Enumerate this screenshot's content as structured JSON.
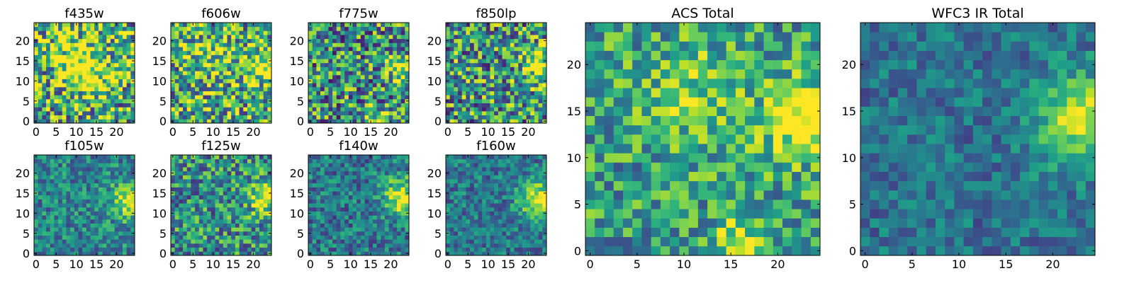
{
  "figure": {
    "colormap": "viridis",
    "colormap_colors": [
      "#440154",
      "#482878",
      "#3e4989",
      "#31688e",
      "#26828e",
      "#1f9e89",
      "#35b779",
      "#6ece58",
      "#b5de2b",
      "#fde725"
    ]
  },
  "chart_data": [
    {
      "type": "heatmap",
      "title": "f435w",
      "grid": false,
      "seed": 11,
      "xlim": [
        0,
        24
      ],
      "ylim": [
        0,
        24
      ],
      "xticks": [
        "0",
        "5",
        "10",
        "15",
        "20"
      ],
      "yticks": [
        "0",
        "5",
        "10",
        "15",
        "20"
      ],
      "description": "25x25 noisy pixel stamp",
      "values": [],
      "bright_spots": [
        [
          10,
          15,
          0.35,
          4
        ],
        [
          14,
          12,
          0.3,
          4
        ]
      ],
      "base": 0.62,
      "noise": 0.5
    },
    {
      "type": "heatmap",
      "title": "f606w",
      "grid": false,
      "seed": 23,
      "xlim": [
        0,
        24
      ],
      "ylim": [
        0,
        24
      ],
      "xticks": [
        "0",
        "5",
        "10",
        "15",
        "20"
      ],
      "yticks": [
        "0",
        "5",
        "10",
        "15",
        "20"
      ],
      "values": [],
      "bright_spots": [
        [
          23,
          14,
          0.45,
          3
        ],
        [
          10,
          16,
          0.2,
          4
        ]
      ],
      "base": 0.6,
      "noise": 0.45
    },
    {
      "type": "heatmap",
      "title": "f775w",
      "grid": false,
      "seed": 37,
      "xlim": [
        0,
        24
      ],
      "ylim": [
        0,
        24
      ],
      "xticks": [
        "0",
        "5",
        "10",
        "15",
        "20"
      ],
      "yticks": [
        "0",
        "5",
        "10",
        "15",
        "20"
      ],
      "values": [],
      "bright_spots": [
        [
          23,
          13,
          0.45,
          2.5
        ],
        [
          17,
          0,
          0.5,
          2
        ]
      ],
      "base": 0.5,
      "noise": 0.45
    },
    {
      "type": "heatmap",
      "title": "f850lp",
      "grid": false,
      "seed": 41,
      "xlim": [
        0,
        24
      ],
      "ylim": [
        0,
        24
      ],
      "xticks": [
        "0",
        "5",
        "10",
        "15",
        "20"
      ],
      "yticks": [
        "0",
        "5",
        "10",
        "15",
        "20"
      ],
      "values": [],
      "bright_spots": [
        [
          23,
          14,
          0.5,
          3
        ]
      ],
      "base": 0.52,
      "noise": 0.45
    },
    {
      "type": "heatmap",
      "title": "f105w",
      "grid": false,
      "seed": 53,
      "xlim": [
        0,
        24
      ],
      "ylim": [
        0,
        24
      ],
      "xticks": [
        "0",
        "5",
        "10",
        "15",
        "20"
      ],
      "yticks": [
        "0",
        "5",
        "10",
        "15",
        "20"
      ],
      "values": [],
      "bright_spots": [
        [
          23,
          13,
          0.55,
          3
        ]
      ],
      "base": 0.45,
      "noise": 0.25
    },
    {
      "type": "heatmap",
      "title": "f125w",
      "grid": false,
      "seed": 67,
      "xlim": [
        0,
        24
      ],
      "ylim": [
        0,
        24
      ],
      "xticks": [
        "0",
        "5",
        "10",
        "15",
        "20"
      ],
      "yticks": [
        "0",
        "5",
        "10",
        "15",
        "20"
      ],
      "values": [],
      "bright_spots": [
        [
          23,
          14,
          0.5,
          3
        ]
      ],
      "base": 0.5,
      "noise": 0.35
    },
    {
      "type": "heatmap",
      "title": "f140w",
      "grid": false,
      "seed": 71,
      "xlim": [
        0,
        24
      ],
      "ylim": [
        0,
        24
      ],
      "xticks": [
        "0",
        "5",
        "10",
        "15",
        "20"
      ],
      "yticks": [
        "0",
        "5",
        "10",
        "15",
        "20"
      ],
      "values": [],
      "bright_spots": [
        [
          23,
          14,
          0.55,
          3.5
        ]
      ],
      "base": 0.4,
      "noise": 0.25
    },
    {
      "type": "heatmap",
      "title": "f160w",
      "grid": false,
      "seed": 83,
      "xlim": [
        0,
        24
      ],
      "ylim": [
        0,
        24
      ],
      "xticks": [
        "0",
        "5",
        "10",
        "15",
        "20"
      ],
      "yticks": [
        "0",
        "5",
        "10",
        "15",
        "20"
      ],
      "values": [],
      "bright_spots": [
        [
          23,
          13,
          0.6,
          3.5
        ]
      ],
      "base": 0.4,
      "noise": 0.22
    },
    {
      "type": "heatmap",
      "title": "ACS Total",
      "grid": false,
      "seed": 97,
      "xlim": [
        0,
        24
      ],
      "ylim": [
        0,
        24
      ],
      "xticks": [
        "0",
        "5",
        "10",
        "15",
        "20"
      ],
      "yticks": [
        "0",
        "5",
        "10",
        "15",
        "20"
      ],
      "values": [],
      "bright_spots": [
        [
          23,
          14,
          0.5,
          3
        ],
        [
          11,
          17,
          0.25,
          4
        ],
        [
          16,
          1,
          0.35,
          2
        ]
      ],
      "base": 0.55,
      "noise": 0.3
    },
    {
      "type": "heatmap",
      "title": "WFC3 IR Total",
      "grid": false,
      "seed": 101,
      "xlim": [
        0,
        24
      ],
      "ylim": [
        0,
        24
      ],
      "xticks": [
        "0",
        "5",
        "10",
        "15",
        "20"
      ],
      "yticks": [
        "0",
        "5",
        "10",
        "15",
        "20"
      ],
      "values": [],
      "bright_spots": [
        [
          23,
          14,
          0.55,
          3.5
        ]
      ],
      "base": 0.38,
      "noise": 0.18
    }
  ]
}
